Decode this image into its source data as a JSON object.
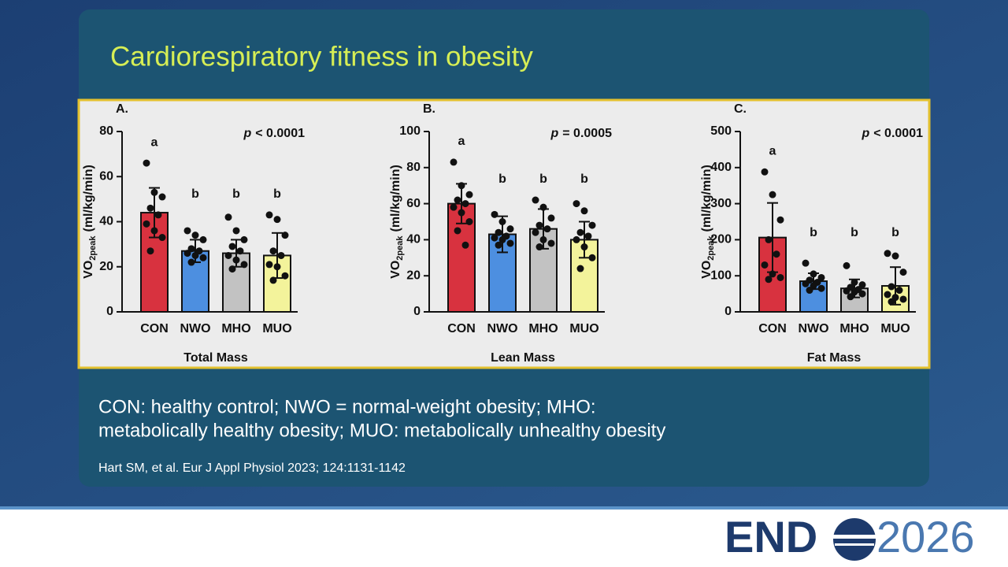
{
  "slide": {
    "title": "Cardiorespiratory fitness in obesity",
    "caption_lines": [
      "CON: healthy control; NWO = normal-weight obesity; MHO:",
      "metabolically healthy obesity; MUO: metabolically unhealthy obesity"
    ],
    "citation": "Hart SM, et al. Eur J Appl Physiol 2023; 124:1131-1142",
    "logo": {
      "main": "END",
      "year": "2026"
    }
  },
  "chart_data": [
    {
      "type": "bar",
      "panel": "A.",
      "p_label": "p",
      "p_value": "< 0.0001",
      "ylabel": {
        "main": "VO",
        "sub": "2peak",
        "unit": "(ml/kg/min)"
      },
      "xlabel": "Total Mass",
      "categories": [
        "CON",
        "NWO",
        "MHO",
        "MUO"
      ],
      "colors": [
        "#d8323f",
        "#4d8fe0",
        "#c2c2c2",
        "#f3f39b"
      ],
      "values": [
        44,
        27,
        26,
        25
      ],
      "sd": [
        11,
        5,
        6,
        10
      ],
      "letters": [
        "a",
        "b",
        "b",
        "b"
      ],
      "points": [
        [
          66,
          53,
          51,
          46,
          43,
          39,
          36,
          33,
          27
        ],
        [
          36,
          34,
          32,
          28,
          27,
          26,
          25,
          24,
          22
        ],
        [
          42,
          36,
          32,
          29,
          27,
          25,
          23,
          21,
          19
        ],
        [
          43,
          41,
          34,
          27,
          25,
          21,
          20,
          16,
          14
        ]
      ],
      "ylim": [
        0,
        80
      ],
      "yticks": [
        0,
        20,
        40,
        60,
        80
      ]
    },
    {
      "type": "bar",
      "panel": "B.",
      "p_label": "p",
      "p_value": "= 0.0005",
      "ylabel": {
        "main": "VO",
        "sub": "2peak",
        "unit": "(ml/kg/min)"
      },
      "xlabel": "Lean Mass",
      "categories": [
        "CON",
        "NWO",
        "MHO",
        "MUO"
      ],
      "colors": [
        "#d8323f",
        "#4d8fe0",
        "#c2c2c2",
        "#f3f39b"
      ],
      "values": [
        60,
        43,
        46,
        40
      ],
      "sd": [
        11,
        10,
        11,
        10
      ],
      "letters": [
        "a",
        "b",
        "b",
        "b"
      ],
      "points": [
        [
          83,
          70,
          65,
          62,
          60,
          58,
          55,
          50,
          45,
          37
        ],
        [
          54,
          50,
          46,
          44,
          42,
          41,
          40,
          38,
          37
        ],
        [
          62,
          58,
          52,
          48,
          46,
          44,
          40,
          38,
          36
        ],
        [
          60,
          56,
          48,
          44,
          42,
          40,
          36,
          30,
          24
        ]
      ],
      "ylim": [
        0,
        100
      ],
      "yticks": [
        0,
        20,
        40,
        60,
        80,
        100
      ]
    },
    {
      "type": "bar",
      "panel": "C.",
      "p_label": "p",
      "p_value": "< 0.0001",
      "ylabel": {
        "main": "VO",
        "sub": "2peak",
        "unit": "(ml/kg/min)"
      },
      "xlabel": "Fat Mass",
      "categories": [
        "CON",
        "NWO",
        "MHO",
        "MUO"
      ],
      "colors": [
        "#d8323f",
        "#4d8fe0",
        "#c2c2c2",
        "#f3f39b"
      ],
      "values": [
        206,
        85,
        65,
        72
      ],
      "sd": [
        96,
        22,
        25,
        52
      ],
      "letters": [
        "a",
        "b",
        "b",
        "b"
      ],
      "points": [
        [
          388,
          325,
          255,
          200,
          160,
          130,
          105,
          95,
          90
        ],
        [
          135,
          105,
          95,
          88,
          82,
          78,
          72,
          65,
          60
        ],
        [
          128,
          82,
          75,
          68,
          62,
          58,
          55,
          50,
          42
        ],
        [
          162,
          155,
          110,
          70,
          60,
          48,
          40,
          35,
          28
        ]
      ],
      "ylim": [
        0,
        500
      ],
      "yticks": [
        0,
        100,
        200,
        300,
        400,
        500
      ]
    }
  ]
}
